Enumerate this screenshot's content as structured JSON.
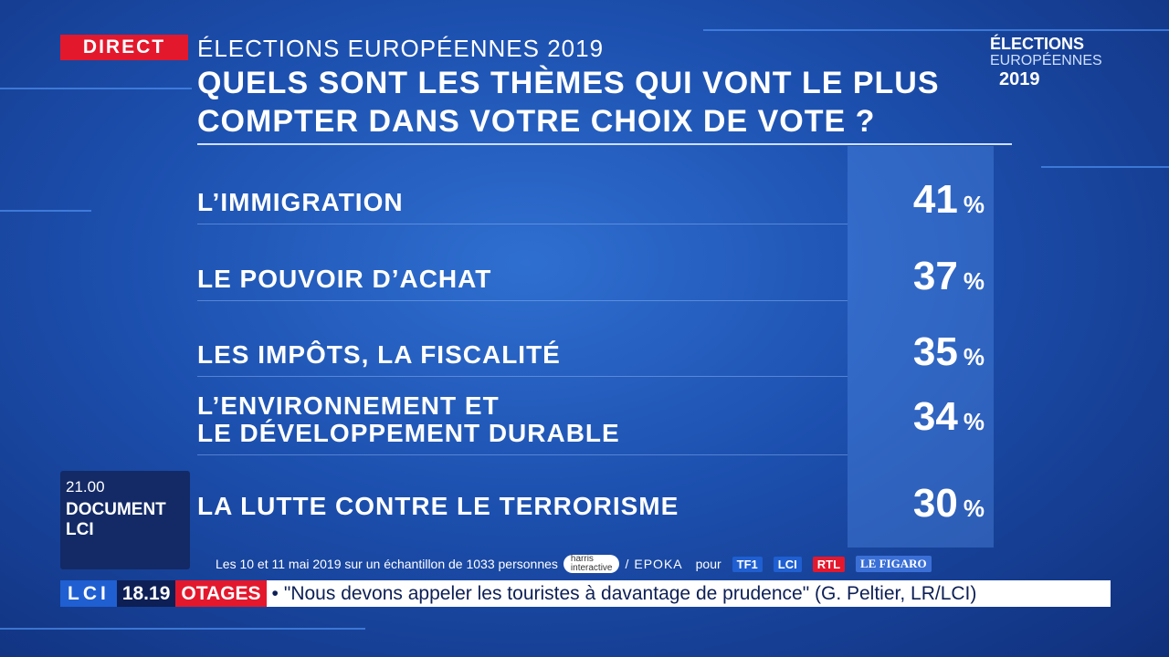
{
  "live_badge": "DIRECT",
  "header": {
    "kicker": "ÉLECTIONS EUROPÉENNES 2019",
    "title_lines": [
      "QUELS SONT LES THÈMES QUI VONT LE PLUS",
      "COMPTER DANS VOTRE CHOIX DE VOTE ?"
    ]
  },
  "logo": {
    "lines": [
      "ÉLECTIONS",
      "EUROPÉENNES",
      "2019"
    ]
  },
  "items": [
    {
      "label_lines": [
        "L’IMMIGRATION"
      ],
      "value": 41
    },
    {
      "label_lines": [
        "LE POUVOIR D’ACHAT"
      ],
      "value": 37
    },
    {
      "label_lines": [
        "LES IMPÔTS, LA FISCALITÉ"
      ],
      "value": 35
    },
    {
      "label_lines": [
        "L’ENVIRONNEMENT ET",
        "LE DÉVELOPPEMENT DURABLE"
      ],
      "value": 34
    },
    {
      "label_lines": [
        "LA LUTTE CONTRE LE TERRORISME"
      ],
      "value": 30
    }
  ],
  "unit": "%",
  "program": {
    "time": "21.00",
    "lines": [
      "DOCUMENT",
      "LCI"
    ]
  },
  "source": {
    "text": "Les 10 et 11 mai 2019 sur un échantillon de 1033 personnes",
    "institute_lines": [
      "harris",
      "interactive"
    ],
    "separator": "/",
    "partner": "EPOKA",
    "pour": "pour",
    "media": [
      "TF1",
      "LCI",
      "RTL",
      "LE FIGARO"
    ]
  },
  "ticker": {
    "channel": "LCI",
    "time": "18.19",
    "topic": "OTAGES",
    "bullet": "•",
    "text": "\"Nous devons appeler les touristes à davantage de prudence\" (G. Peltier, LR/LCI)"
  }
}
